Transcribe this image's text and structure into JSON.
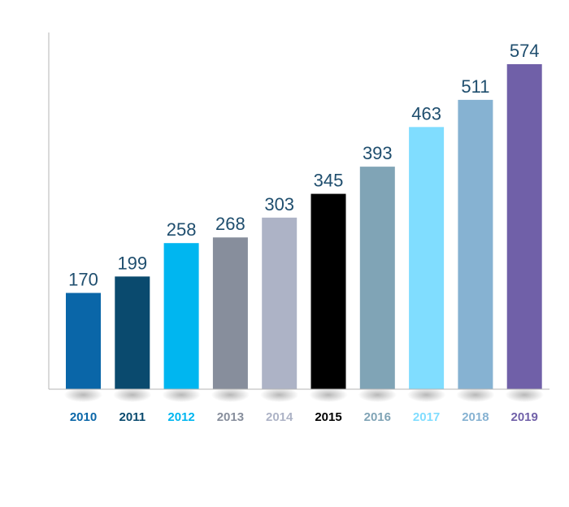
{
  "chart_data": {
    "type": "bar",
    "title": "",
    "xlabel": "",
    "ylabel": "",
    "ylim": [
      0,
      600
    ],
    "grid": false,
    "legend": "none",
    "categories": [
      "2010",
      "2011",
      "2012",
      "2013",
      "2014",
      "2015",
      "2016",
      "2017",
      "2018",
      "2019"
    ],
    "values": [
      170,
      199,
      258,
      268,
      303,
      345,
      393,
      463,
      511,
      574
    ],
    "value_labels": [
      "170",
      "199",
      "258",
      "268",
      "303",
      "345",
      "393",
      "463",
      "511",
      "574"
    ],
    "colors": [
      "#0a66a8",
      "#0a4a6e",
      "#00b6f0",
      "#878e9c",
      "#adb3c6",
      "#000000",
      "#80a4b6",
      "#80ddff",
      "#86b2d2",
      "#7060a8"
    ],
    "value_label_color": "#1f4e6e",
    "axis_color": "#b5b5b5"
  }
}
